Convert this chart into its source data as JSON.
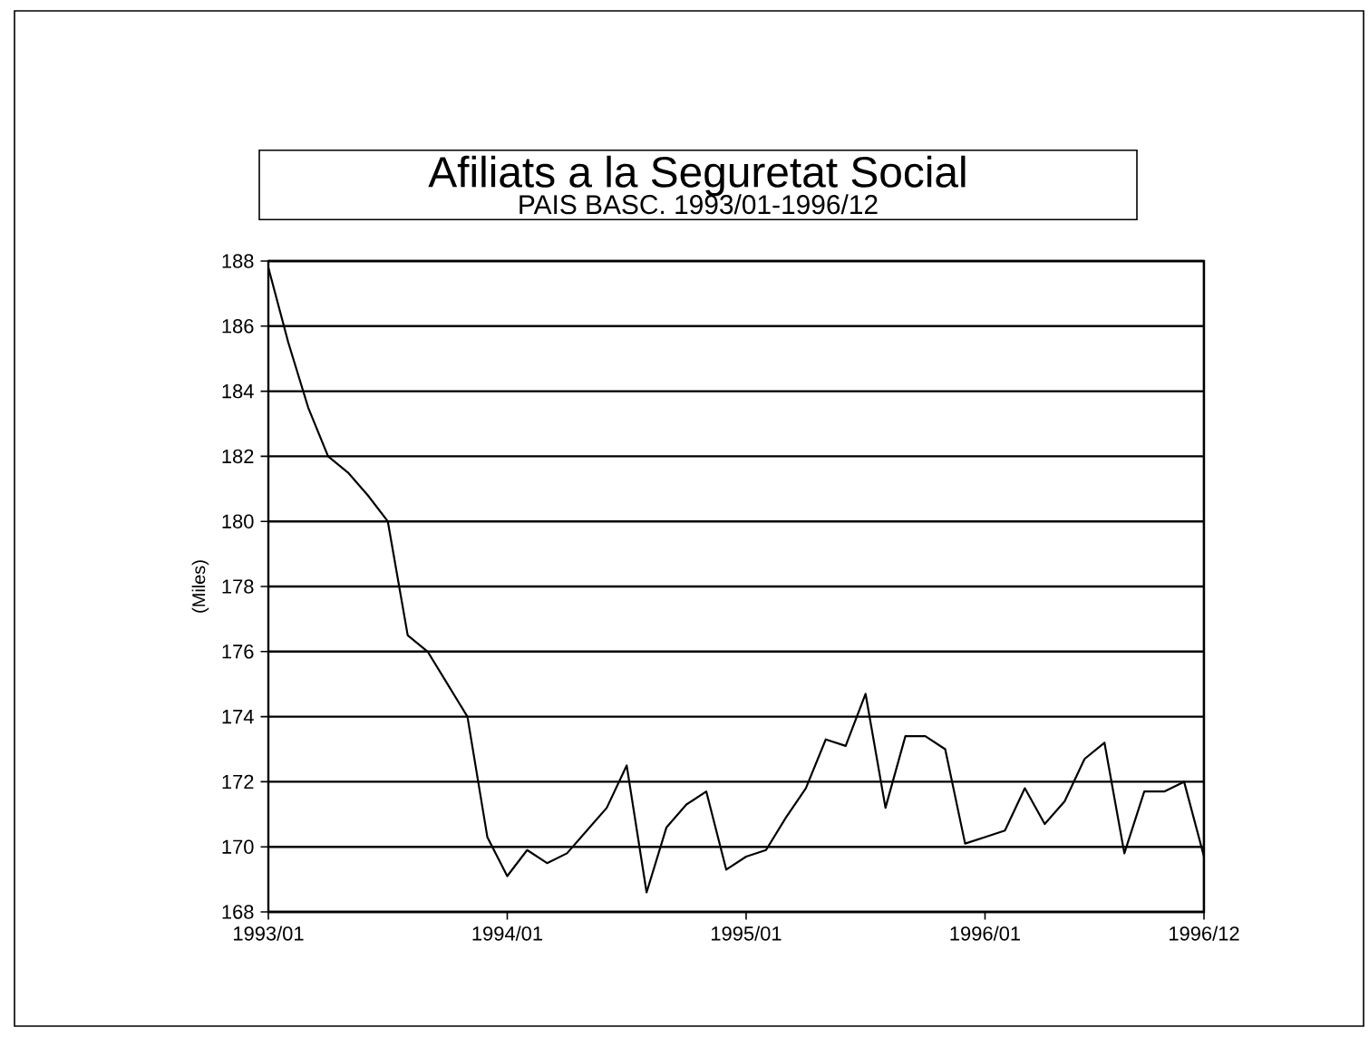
{
  "chart_data": {
    "type": "line",
    "title": "Afiliats a la Seguretat Social",
    "subtitle": "PAIS BASC. 1993/01-1996/12",
    "ylabel": "(Miles)",
    "x": [
      "1993-01",
      "1993-02",
      "1993-03",
      "1993-04",
      "1993-05",
      "1993-06",
      "1993-07",
      "1993-08",
      "1993-09",
      "1993-10",
      "1993-11",
      "1993-12",
      "1994-01",
      "1994-02",
      "1994-03",
      "1994-04",
      "1994-05",
      "1994-06",
      "1994-07",
      "1994-08",
      "1994-09",
      "1994-10",
      "1994-11",
      "1994-12",
      "1995-01",
      "1995-02",
      "1995-03",
      "1995-04",
      "1995-05",
      "1995-06",
      "1995-07",
      "1995-08",
      "1995-09",
      "1995-10",
      "1995-11",
      "1995-12",
      "1996-01",
      "1996-02",
      "1996-03",
      "1996-04",
      "1996-05",
      "1996-06",
      "1996-07",
      "1996-08",
      "1996-09",
      "1996-10",
      "1996-11",
      "1996-12"
    ],
    "series": [
      {
        "color": "#000000",
        "values": [
          187.8,
          185.5,
          183.5,
          182,
          181.5,
          180.8,
          180,
          176.5,
          176,
          175,
          174,
          170.3,
          169.1,
          169.9,
          169.5,
          169.8,
          170.5,
          171.2,
          172.5,
          168.6,
          170.6,
          171.3,
          171.7,
          169.3,
          169.7,
          169.9,
          170.9,
          171.8,
          173.3,
          173.1,
          174.7,
          171.2,
          173.4,
          173.4,
          173,
          170.1,
          170.3,
          170.5,
          171.8,
          170.7,
          171.4,
          172.7,
          173.2,
          169.8,
          171.7,
          171.7,
          172,
          169.7
        ]
      }
    ],
    "xlim": [
      "1993-01",
      "1996-12"
    ],
    "xticks": [
      {
        "value": "1993-01",
        "label": "1993/01"
      },
      {
        "value": "1994-01",
        "label": "1994/01"
      },
      {
        "value": "1995-01",
        "label": "1995/01"
      },
      {
        "value": "1996-01",
        "label": "1996/01"
      },
      {
        "value": "1996-12",
        "label": "1996/12"
      }
    ],
    "ylim": [
      168,
      188
    ],
    "yticks": [
      168,
      170,
      172,
      174,
      176,
      178,
      180,
      182,
      184,
      186,
      188
    ],
    "grid": "y",
    "marker": "none",
    "line_style": "solid"
  }
}
